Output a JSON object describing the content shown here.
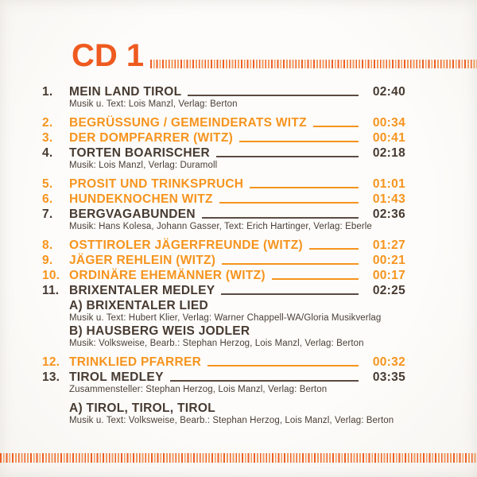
{
  "colors": {
    "accent_header": "#ee5a1f",
    "track_orange": "#f6941e",
    "track_dark": "#473a31",
    "credit_text": "#4a3e36",
    "leader_dark": "#5b4b41",
    "paper": "#fcfbf8"
  },
  "header": {
    "title": "CD 1"
  },
  "tracklist": {
    "tracks": [
      {
        "num": "1.",
        "title": "MEIN LAND TIROL",
        "time": "02:40",
        "style": "dark",
        "gap_before": false,
        "credit": "Musik u. Text: Lois Manzl, Verlag: Berton"
      },
      {
        "num": "2.",
        "title": "BEGRÜSSUNG / GEMEINDERATS WITZ",
        "time": "00:34",
        "style": "orange",
        "gap_before": true
      },
      {
        "num": "3.",
        "title": "DER DOMPFARRER (WITZ)",
        "time": "00:41",
        "style": "orange",
        "gap_before": false
      },
      {
        "num": "4.",
        "title": "TORTEN BOARISCHER",
        "time": "02:18",
        "style": "dark",
        "gap_before": false,
        "credit": "Musik: Lois Manzl, Verlag: Duramoll"
      },
      {
        "num": "5.",
        "title": "PROSIT UND TRINKSPRUCH",
        "time": "01:01",
        "style": "orange",
        "gap_before": true
      },
      {
        "num": "6.",
        "title": "HUNDEKNOCHEN WITZ",
        "time": "01:43",
        "style": "orange",
        "gap_before": false
      },
      {
        "num": "7.",
        "title": "BERGVAGABUNDEN",
        "time": "02:36",
        "style": "dark",
        "gap_before": false,
        "credit": "Musik: Hans Kolesa, Johann Gasser, Text: Erich Hartinger, Verlag: Eberle"
      },
      {
        "num": "8.",
        "title": "OSTTIROLER JÄGERFREUNDE (WITZ)",
        "time": "01:27",
        "style": "orange",
        "gap_before": true
      },
      {
        "num": "9.",
        "title": "JÄGER REHLEIN (WITZ)",
        "time": "00:21",
        "style": "orange",
        "gap_before": false
      },
      {
        "num": "10.",
        "title": "ORDINÄRE EHEMÄNNER (WITZ)",
        "time": "00:17",
        "style": "orange",
        "gap_before": false
      },
      {
        "num": "11.",
        "title": "BRIXENTALER MEDLEY",
        "time": "02:25",
        "style": "dark",
        "gap_before": false,
        "subs": [
          {
            "label": "A) BRIXENTALER LIED",
            "credit": "Musik u. Text: Hubert Klier, Verlag: Warner Chappell-WA/Gloria Musikverlag"
          },
          {
            "label": "B) HAUSBERG WEIS JODLER",
            "credit": "Musik: Volksweise, Bearb.: Stephan Herzog, Lois Manzl, Verlag: Berton"
          }
        ]
      },
      {
        "num": "12.",
        "title": "TRINKLIED PFARRER",
        "time": "00:32",
        "style": "orange",
        "gap_before": true
      },
      {
        "num": "13.",
        "title": "TIROL MEDLEY",
        "time": "03:35",
        "style": "dark",
        "gap_before": false,
        "credit": "Zusammensteller: Stephan Herzog, Lois Manzl, Verlag: Berton",
        "subs": [
          {
            "label": "A) TIROL, TIROL, TIROL",
            "credit": "Musik u. Text: Volksweise, Bearb.: Stephan Herzog, Lois Manzl, Verlag: Berton",
            "gap_before": true
          }
        ]
      }
    ]
  }
}
